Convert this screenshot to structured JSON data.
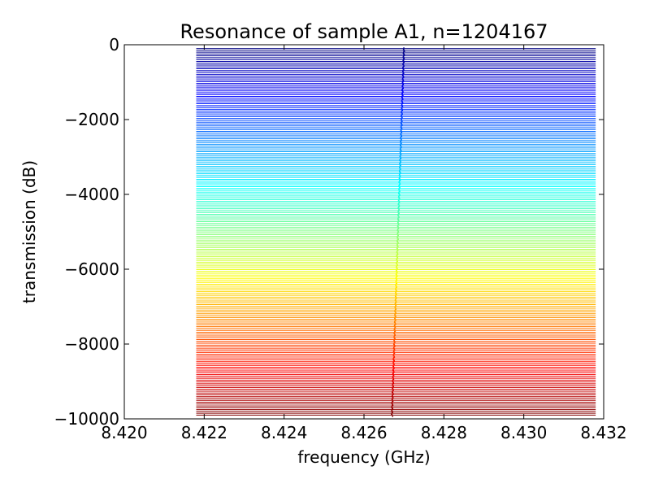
{
  "chart_data": {
    "type": "line",
    "title": "Resonance of sample A1, n=1204167",
    "xlabel": "frequency (GHz)",
    "ylabel": "transmission (dB)",
    "xlim": [
      8.42,
      8.432
    ],
    "ylim": [
      -10000,
      0
    ],
    "x_ticks": [
      "8.420",
      "8.422",
      "8.424",
      "8.426",
      "8.428",
      "8.430",
      "8.432"
    ],
    "x_tick_values": [
      8.42,
      8.422,
      8.424,
      8.426,
      8.428,
      8.43,
      8.432
    ],
    "y_ticks": [
      "0",
      "−2000",
      "−4000",
      "−6000",
      "−8000",
      "−10000"
    ],
    "y_tick_values": [
      0,
      -2000,
      -4000,
      -6000,
      -8000,
      -10000
    ],
    "series_description": "stacked transmission traces offset vertically, colored with jet colormap",
    "trace_count": 200,
    "trace_x_range": [
      8.4218,
      8.4318
    ],
    "trace_y_range": [
      -9900,
      -100
    ],
    "resonance_freq_top": 8.427,
    "resonance_freq_bottom": 8.4267,
    "colormap": "jet",
    "grid": false,
    "legend": "none"
  }
}
